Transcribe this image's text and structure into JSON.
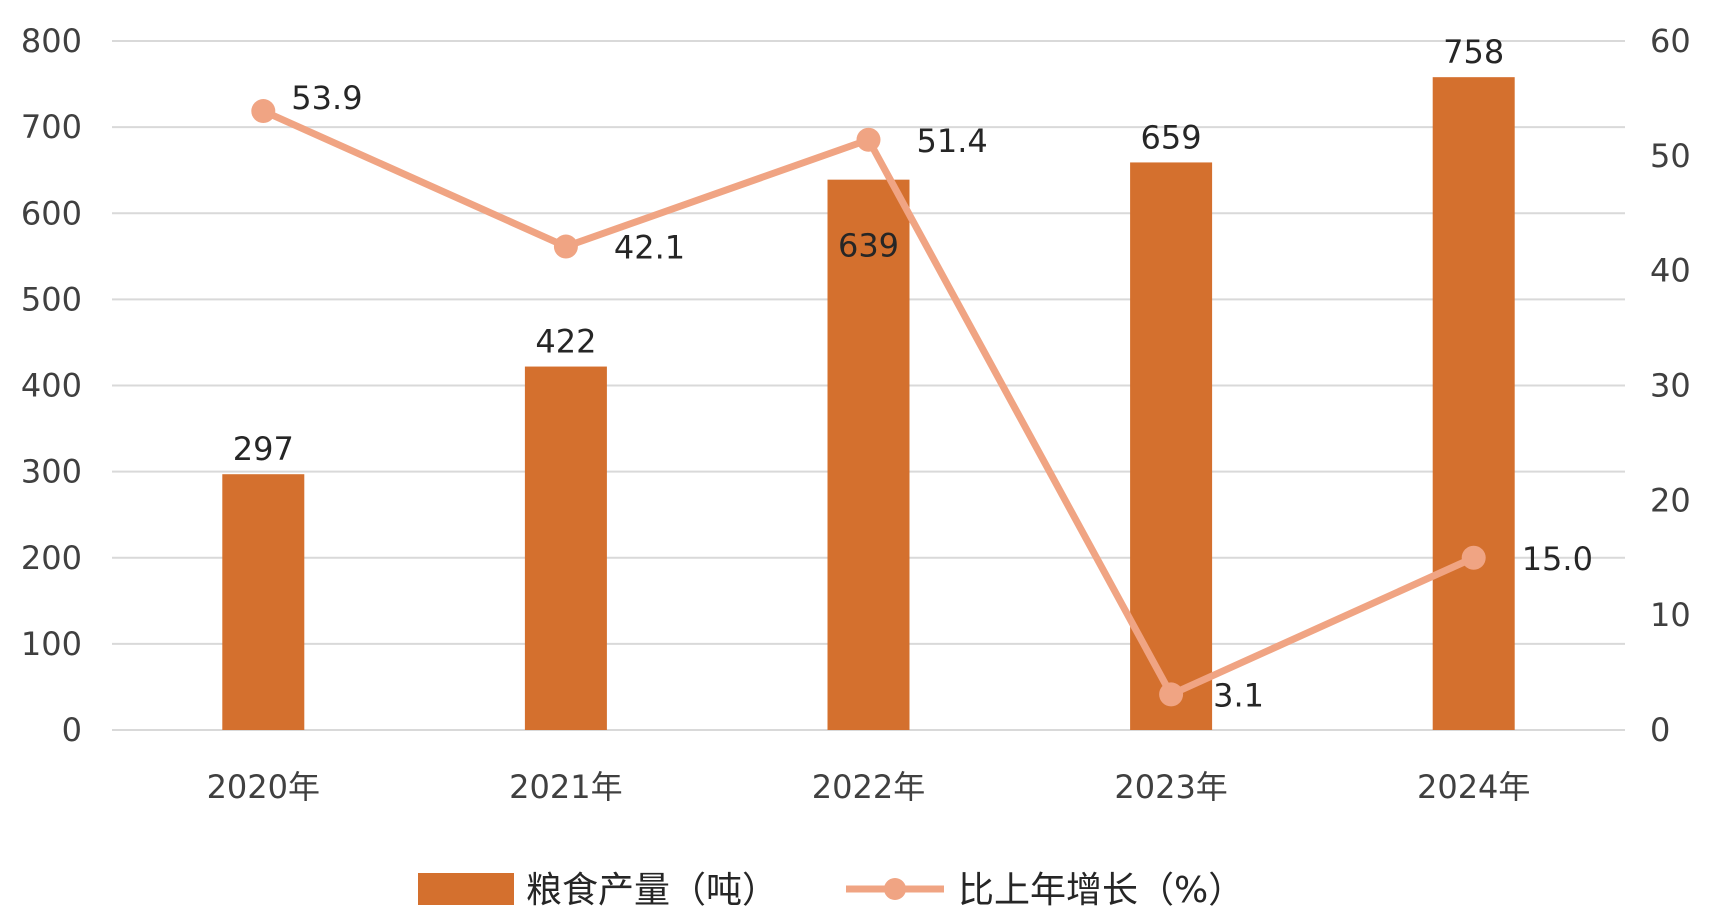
{
  "chart_data": {
    "type": "bar+line",
    "categories": [
      "2020年",
      "2021年",
      "2022年",
      "2023年",
      "2024年"
    ],
    "series": [
      {
        "name": "粮食产量（吨）",
        "type": "bar",
        "axis": "left",
        "values": [
          297,
          422,
          639,
          659,
          758
        ],
        "color": "#D4702E"
      },
      {
        "name": "比上年增长（%）",
        "type": "line",
        "axis": "right",
        "values": [
          53.9,
          42.1,
          51.4,
          3.1,
          15.0
        ],
        "color": "#F0A483"
      }
    ],
    "bar_labels": [
      "297",
      "422",
      "639",
      "659",
      "758"
    ],
    "line_labels": [
      "53.9",
      "42.1",
      "51.4",
      "3.1",
      "15.0"
    ],
    "y_left": {
      "min": 0,
      "max": 800,
      "step": 100,
      "ticks": [
        "0",
        "100",
        "200",
        "300",
        "400",
        "500",
        "600",
        "700",
        "800"
      ]
    },
    "y_right": {
      "min": 0,
      "max": 60,
      "step": 10,
      "ticks": [
        "0",
        "10",
        "20",
        "30",
        "40",
        "50",
        "60"
      ]
    },
    "grid": true,
    "legend_position": "bottom",
    "gridline_color": "#D9D9D9"
  }
}
